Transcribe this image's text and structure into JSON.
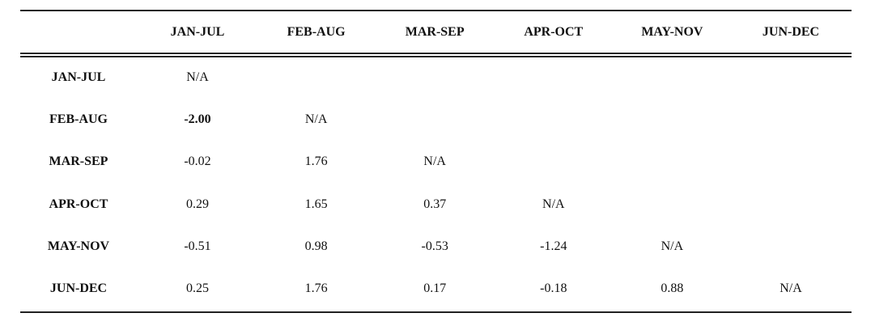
{
  "table": {
    "columns": [
      "JAN-JUL",
      "FEB-AUG",
      "MAR-SEP",
      "APR-OCT",
      "MAY-NOV",
      "JUN-DEC"
    ],
    "rows": [
      {
        "label": "JAN-JUL",
        "cells": [
          "N/A"
        ]
      },
      {
        "label": "FEB-AUG",
        "cells": [
          "-2.00",
          "N/A"
        ]
      },
      {
        "label": "MAR-SEP",
        "cells": [
          "-0.02",
          "1.76",
          "N/A"
        ]
      },
      {
        "label": "APR-OCT",
        "cells": [
          "0.29",
          "1.65",
          "0.37",
          "N/A"
        ]
      },
      {
        "label": "MAY-NOV",
        "cells": [
          "-0.51",
          "0.98",
          "-0.53",
          "-1.24",
          "N/A"
        ]
      },
      {
        "label": "JUN-DEC",
        "cells": [
          "0.25",
          "1.76",
          "0.17",
          "-0.18",
          "0.88",
          "N/A"
        ]
      }
    ],
    "bold_cells": [
      [
        1,
        0
      ]
    ]
  }
}
